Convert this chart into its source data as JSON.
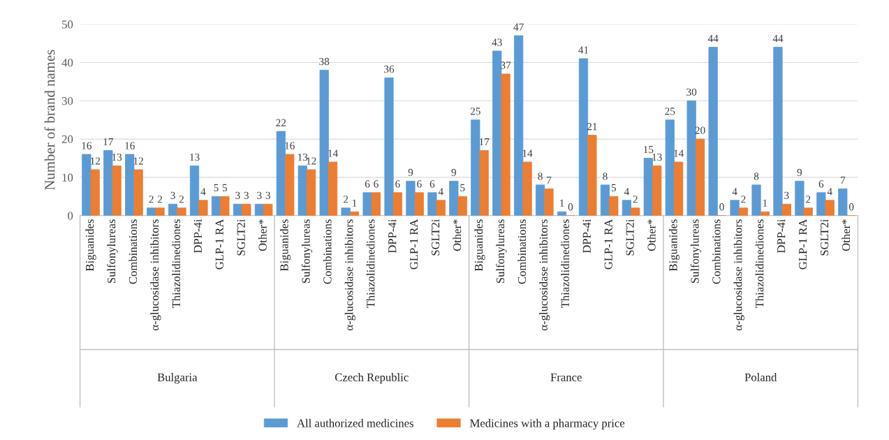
{
  "chart_data": {
    "type": "bar",
    "ylabel": "Number of brand names",
    "categories": [
      "Biguanides",
      "Sulfonylureas",
      "Combinations",
      "α-glucosidase inhibitors",
      "Thiazolidinediones",
      "DPP-4i",
      "GLP-1 RA",
      "SGLT2i",
      "Other*",
      "Biguanides",
      "Sulfonylureas",
      "Combinations",
      "α-glucosidase inhibitors",
      "Thiazolidinediones",
      "DPP-4i",
      "GLP-1 RA",
      "SGLT2i",
      "Other*",
      "Biguanides",
      "Sulfonylureas",
      "Combinations",
      "α-glucosidase inhibitors",
      "Thiazolidinediones",
      "DPP-4i",
      "GLP-1 RA",
      "SGLT2i",
      "Other*",
      "Biguanides",
      "Sulfonylureas",
      "Combinations",
      "α-glucosidase inhibitors",
      "Thiazolidinediones",
      "DPP-4i",
      "GLP-1 RA",
      "SGLT2i",
      "Other*"
    ],
    "series": [
      {
        "name": "All authorized medicines",
        "color": "#5b9bd5",
        "values": [
          16,
          17,
          16,
          2,
          3,
          13,
          5,
          3,
          3,
          22,
          13,
          38,
          2,
          6,
          36,
          9,
          6,
          9,
          25,
          43,
          47,
          8,
          1,
          41,
          8,
          4,
          15,
          25,
          30,
          44,
          4,
          8,
          44,
          9,
          6,
          7
        ]
      },
      {
        "name": "Medicines with a pharmacy price",
        "color": "#ed7d31",
        "values": [
          12,
          13,
          12,
          2,
          2,
          4,
          5,
          3,
          3,
          16,
          12,
          14,
          1,
          6,
          6,
          6,
          4,
          5,
          17,
          37,
          14,
          7,
          0,
          21,
          5,
          2,
          13,
          14,
          20,
          0,
          2,
          1,
          3,
          2,
          4,
          0
        ]
      }
    ],
    "annotations": [
      "Bulgaria",
      "Czech Republic",
      "France",
      "Poland"
    ],
    "ylim": [
      0,
      50
    ],
    "yticks": [
      0,
      10,
      20,
      30,
      40,
      50
    ],
    "grid": "y",
    "legend": "bottom",
    "data_labels": true
  }
}
